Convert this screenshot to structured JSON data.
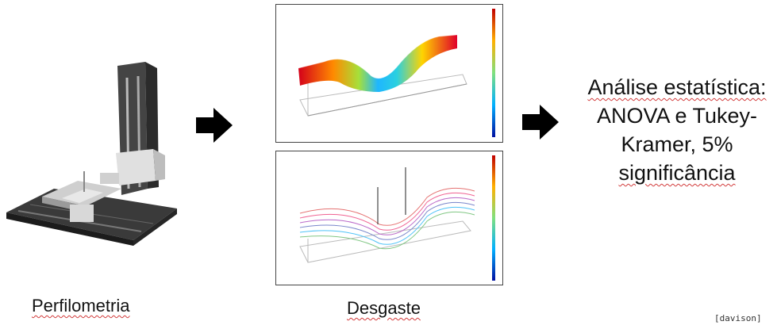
{
  "steps": [
    {
      "label": "Perfilometria"
    },
    {
      "label": "Desgaste"
    },
    {
      "lines": [
        "Análise estatística:",
        "ANOVA e Tukey-",
        "Kramer, 5%",
        "significância"
      ]
    }
  ],
  "credit": "[davison]",
  "colors": {
    "arrow": "#000000",
    "underline": "#d23b3b"
  },
  "icons": [
    "profilometer-machine-image",
    "arrow-right-icon",
    "wear-surface-3d-plot",
    "wear-contour-3d-plot"
  ]
}
